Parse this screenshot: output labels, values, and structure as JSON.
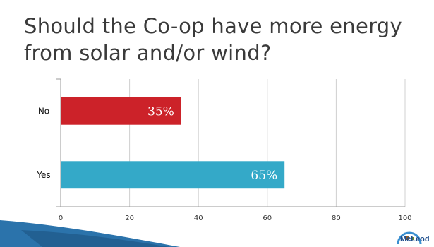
{
  "chart_data": {
    "type": "bar",
    "orientation": "horizontal",
    "title": "Should the Co-op have more energy from solar and/or wind?",
    "categories": [
      "No",
      "Yes"
    ],
    "values": [
      35,
      65
    ],
    "data_labels": [
      "35%",
      "65%"
    ],
    "colors": [
      "#cc2229",
      "#34a9c8"
    ],
    "xlim": [
      0,
      100
    ],
    "xticks": [
      0,
      20,
      40,
      60,
      80,
      100
    ],
    "grid": "vertical",
    "legend": "none"
  },
  "logo": {
    "text": "McLeod"
  }
}
